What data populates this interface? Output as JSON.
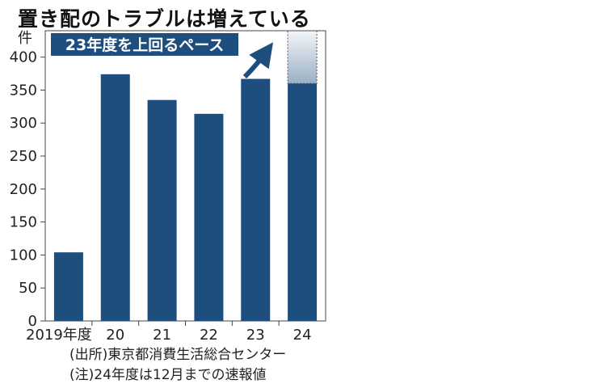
{
  "title": "置き配のトラブルは増えている",
  "chart_data": {
    "type": "bar",
    "unit": "件",
    "categories": [
      "2019年度",
      "20",
      "21",
      "22",
      "23",
      "24"
    ],
    "values": [
      104,
      374,
      335,
      314,
      367,
      360
    ],
    "projection": {
      "category": "24",
      "value": 440
    },
    "annotation": "23年度を上回るペース",
    "yticks": [
      0,
      50,
      100,
      150,
      200,
      250,
      300,
      350,
      400
    ],
    "ylim": [
      0,
      440
    ],
    "grid": false,
    "colors": {
      "bar": "#1d4e7e",
      "annotation_bg": "#1d4e7e",
      "arrow": "#1d4e7e",
      "frame": "#444444"
    }
  },
  "footnotes": {
    "source": "(出所)東京都消費生活総合センター",
    "note": "(注)24年度は12月までの速報値"
  }
}
